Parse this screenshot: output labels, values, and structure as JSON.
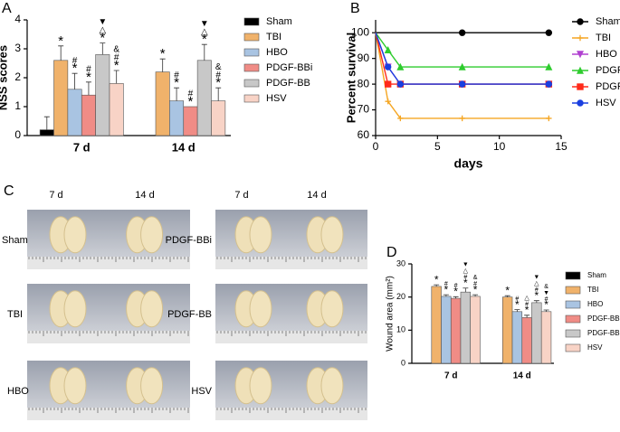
{
  "chart_data": [
    {
      "type": "bar",
      "panel_label": "A",
      "ylabel": "NSS scores",
      "categories": [
        "7 d",
        "14 d"
      ],
      "ylim": [
        0,
        4
      ],
      "yticks": [
        0,
        1,
        2,
        3,
        4
      ],
      "series": [
        {
          "name": "Sham",
          "color": "#000000",
          "values": [
            0.2,
            0
          ],
          "errors": [
            0.45,
            0
          ],
          "marks": [
            [],
            []
          ]
        },
        {
          "name": "TBI",
          "color": "#f0b26b",
          "values": [
            2.6,
            2.2
          ],
          "errors": [
            0.5,
            0.45
          ],
          "marks": [
            [
              "*"
            ],
            [
              "*"
            ]
          ]
        },
        {
          "name": "HBO",
          "color": "#a9c4e2",
          "values": [
            1.6,
            1.2
          ],
          "errors": [
            0.55,
            0.45
          ],
          "marks": [
            [
              "#",
              "*"
            ],
            [
              "#",
              "*"
            ]
          ]
        },
        {
          "name": "PDGF-BBi",
          "color": "#f08c86",
          "values": [
            1.4,
            1.0
          ],
          "errors": [
            0.45,
            0
          ],
          "marks": [
            [
              "#",
              "*"
            ],
            [
              "#",
              "*"
            ]
          ]
        },
        {
          "name": "PDGF-BB",
          "color": "#c8c8c8",
          "values": [
            2.8,
            2.6
          ],
          "errors": [
            0.4,
            0.55
          ],
          "marks": [
            [
              "▼",
              "△",
              "*"
            ],
            [
              "▼",
              "△",
              "*"
            ]
          ]
        },
        {
          "name": "HSV",
          "color": "#f8d3c6",
          "values": [
            1.8,
            1.2
          ],
          "errors": [
            0.45,
            0.45
          ],
          "marks": [
            [
              "&",
              "#",
              "*"
            ],
            [
              "&",
              "#",
              "*"
            ]
          ]
        }
      ]
    },
    {
      "type": "line",
      "panel_label": "B",
      "ylabel": "Percent survival",
      "xlabel": "days",
      "xlim": [
        0,
        15
      ],
      "xticks": [
        0,
        5,
        10,
        15
      ],
      "ylim": [
        60,
        105
      ],
      "yticks": [
        60,
        70,
        80,
        90,
        100
      ],
      "series": [
        {
          "name": "Sham",
          "color": "#000000",
          "marker": "circle",
          "x": [
            0,
            7,
            14
          ],
          "values": [
            100,
            100,
            100
          ]
        },
        {
          "name": "TBI",
          "color": "#f5a623",
          "marker": "cross",
          "x": [
            0,
            1,
            2,
            7,
            14
          ],
          "values": [
            100,
            73.3,
            66.7,
            66.7,
            66.7
          ]
        },
        {
          "name": "HBO",
          "color": "#b040d0",
          "marker": "triangle-down",
          "x": [
            0,
            1,
            2,
            7,
            14
          ],
          "values": [
            100,
            86.7,
            80,
            80,
            80
          ]
        },
        {
          "name": "PDGF-BBi",
          "color": "#2ecc2e",
          "marker": "triangle",
          "x": [
            0,
            1,
            2,
            7,
            14
          ],
          "values": [
            100,
            93.3,
            86.7,
            86.7,
            86.7
          ]
        },
        {
          "name": "PDGF-BB",
          "color": "#ff2a1a",
          "marker": "square",
          "x": [
            0,
            1,
            2,
            7,
            14
          ],
          "values": [
            100,
            80,
            80,
            80,
            80
          ]
        },
        {
          "name": "HSV",
          "color": "#1a3fe0",
          "marker": "circle",
          "x": [
            0,
            1,
            2,
            7,
            14
          ],
          "values": [
            100,
            86.7,
            80,
            80,
            80
          ]
        }
      ]
    },
    {
      "type": "bar",
      "panel_label": "D",
      "ylabel": "Wound area (mm²)",
      "categories": [
        "7 d",
        "14 d"
      ],
      "ylim": [
        0,
        30
      ],
      "yticks": [
        0,
        10,
        20,
        30
      ],
      "series": [
        {
          "name": "Sham",
          "color": "#000000",
          "values": [
            0,
            0
          ],
          "errors": [
            0,
            0
          ],
          "marks": [
            [],
            []
          ]
        },
        {
          "name": "TBI",
          "color": "#f0b26b",
          "values": [
            23.2,
            20
          ],
          "errors": [
            0.5,
            0.4
          ],
          "marks": [
            [
              "*"
            ],
            [
              "*"
            ]
          ]
        },
        {
          "name": "HBO",
          "color": "#a9c4e2",
          "values": [
            20.2,
            15.6
          ],
          "errors": [
            0.5,
            0.6
          ],
          "marks": [
            [
              "#",
              "*"
            ],
            [
              "#",
              "*"
            ]
          ]
        },
        {
          "name": "PDGF-BBi",
          "color": "#f08c86",
          "values": [
            19.6,
            13.8
          ],
          "errors": [
            0.5,
            0.7
          ],
          "marks": [
            [
              "#",
              "*"
            ],
            [
              "△",
              "#",
              "*"
            ]
          ]
        },
        {
          "name": "PDGF-BB",
          "color": "#c8c8c8",
          "values": [
            21.5,
            18.3
          ],
          "errors": [
            1.2,
            0.6
          ],
          "marks": [
            [
              "▼",
              "△",
              "#",
              "*"
            ],
            [
              "▼",
              "△",
              "#",
              "*"
            ]
          ]
        },
        {
          "name": "HSV",
          "color": "#f8d3c6",
          "values": [
            20.2,
            15.6
          ],
          "errors": [
            0.5,
            0.5
          ],
          "marks": [
            [
              "&",
              "#",
              "*"
            ],
            [
              "&",
              "▼",
              "#",
              "*"
            ]
          ]
        }
      ]
    }
  ],
  "panel_c": {
    "panel_label": "C",
    "columns": [
      "7 d",
      "14 d",
      "7 d",
      "14 d"
    ],
    "rows_left": [
      "Sham",
      "TBI",
      "HBO"
    ],
    "rows_right": [
      "PDGF-BBi",
      "PDGF-BB",
      "HSV"
    ]
  }
}
